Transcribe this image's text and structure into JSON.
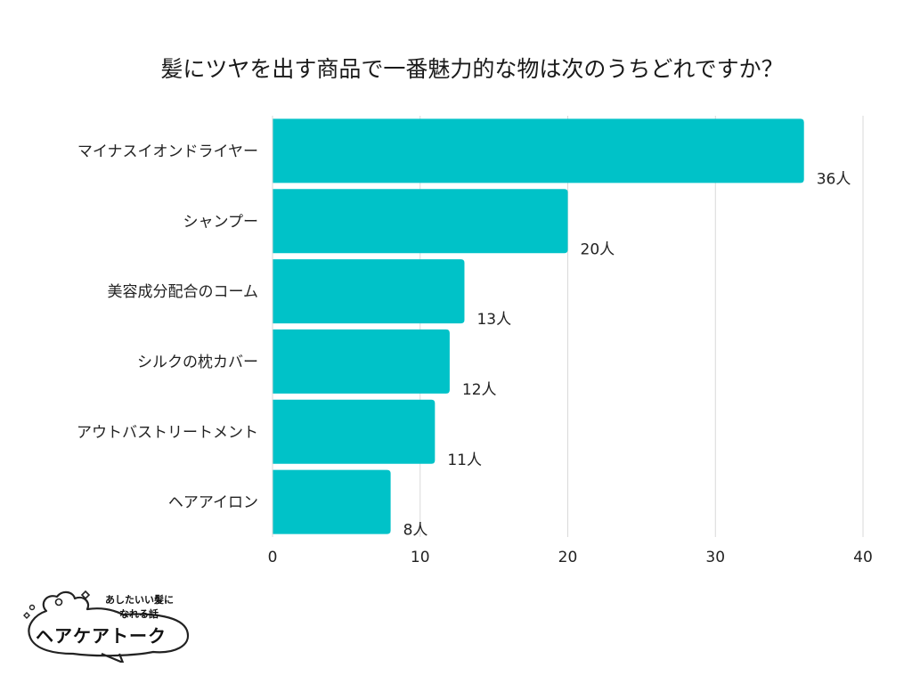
{
  "chart_data": {
    "type": "bar",
    "orientation": "horizontal",
    "title": "髪にツヤを出す商品で一番魅力的な物は次のうちどれですか？",
    "categories": [
      "マイナスイオンドライヤー",
      "シャンプー",
      "美容成分配合のコーム",
      "シルクの枕カバー",
      "アウトバストリートメント",
      "ヘアアイロン"
    ],
    "values": [
      36,
      20,
      13,
      12,
      11,
      8
    ],
    "data_labels": [
      "36人",
      "20人",
      "13人",
      "12人",
      "11人",
      "8人"
    ],
    "xlim": [
      0,
      40
    ],
    "xticks": [
      "0",
      "10",
      "20",
      "30",
      "40"
    ],
    "grid": true,
    "bar_color": "#00C2C8",
    "grid_color": "#D9D9D9"
  },
  "logo": {
    "tagline_line1": "あしたいい髪に",
    "tagline_line2": "なれる話",
    "name": "ヘアケアトーク"
  }
}
